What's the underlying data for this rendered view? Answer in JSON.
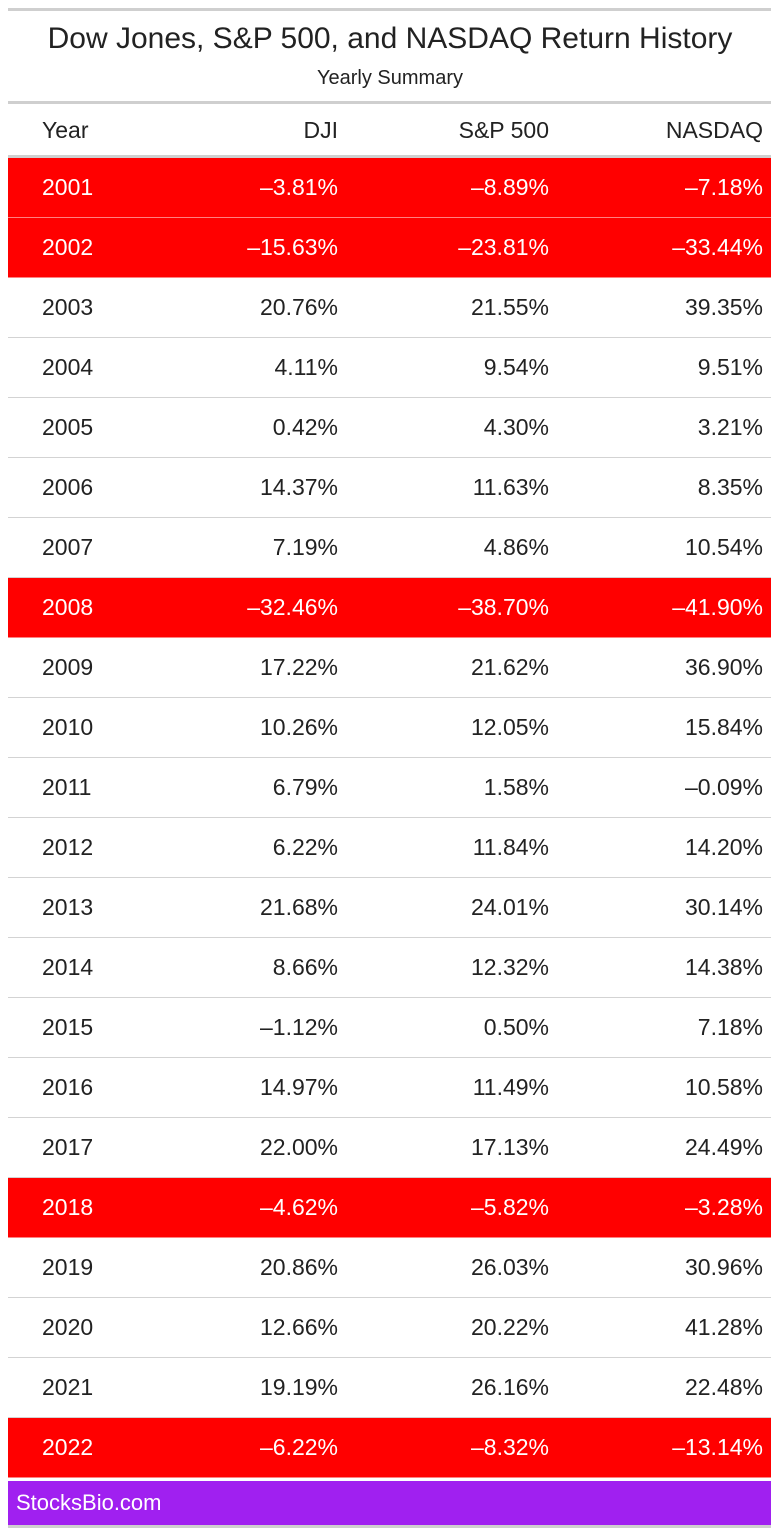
{
  "title": "Dow Jones, S&P 500, and NASDAQ Return History",
  "subtitle": "Yearly Summary",
  "columns": [
    "Year",
    "DJI",
    "S&P 500",
    "NASDAQ"
  ],
  "colors": {
    "negative_row": "#ff0000",
    "footer": "#a020f0",
    "rule": "#cfcfcf"
  },
  "footer": {
    "text": "StocksBio.com"
  },
  "chart_data": {
    "type": "table",
    "title": "Dow Jones, S&P 500, and NASDAQ Return History",
    "subtitle": "Yearly Summary",
    "columns": [
      "Year",
      "DJI",
      "S&P 500",
      "NASDAQ"
    ],
    "rows": [
      {
        "year": "2001",
        "dji": "–3.81%",
        "sp500": "–8.89%",
        "nasdaq": "–7.18%",
        "highlight": true
      },
      {
        "year": "2002",
        "dji": "–15.63%",
        "sp500": "–23.81%",
        "nasdaq": "–33.44%",
        "highlight": true
      },
      {
        "year": "2003",
        "dji": "20.76%",
        "sp500": "21.55%",
        "nasdaq": "39.35%",
        "highlight": false
      },
      {
        "year": "2004",
        "dji": "4.11%",
        "sp500": "9.54%",
        "nasdaq": "9.51%",
        "highlight": false
      },
      {
        "year": "2005",
        "dji": "0.42%",
        "sp500": "4.30%",
        "nasdaq": "3.21%",
        "highlight": false
      },
      {
        "year": "2006",
        "dji": "14.37%",
        "sp500": "11.63%",
        "nasdaq": "8.35%",
        "highlight": false
      },
      {
        "year": "2007",
        "dji": "7.19%",
        "sp500": "4.86%",
        "nasdaq": "10.54%",
        "highlight": false
      },
      {
        "year": "2008",
        "dji": "–32.46%",
        "sp500": "–38.70%",
        "nasdaq": "–41.90%",
        "highlight": true
      },
      {
        "year": "2009",
        "dji": "17.22%",
        "sp500": "21.62%",
        "nasdaq": "36.90%",
        "highlight": false
      },
      {
        "year": "2010",
        "dji": "10.26%",
        "sp500": "12.05%",
        "nasdaq": "15.84%",
        "highlight": false
      },
      {
        "year": "2011",
        "dji": "6.79%",
        "sp500": "1.58%",
        "nasdaq": "–0.09%",
        "highlight": false
      },
      {
        "year": "2012",
        "dji": "6.22%",
        "sp500": "11.84%",
        "nasdaq": "14.20%",
        "highlight": false
      },
      {
        "year": "2013",
        "dji": "21.68%",
        "sp500": "24.01%",
        "nasdaq": "30.14%",
        "highlight": false
      },
      {
        "year": "2014",
        "dji": "8.66%",
        "sp500": "12.32%",
        "nasdaq": "14.38%",
        "highlight": false
      },
      {
        "year": "2015",
        "dji": "–1.12%",
        "sp500": "0.50%",
        "nasdaq": "7.18%",
        "highlight": false
      },
      {
        "year": "2016",
        "dji": "14.97%",
        "sp500": "11.49%",
        "nasdaq": "10.58%",
        "highlight": false
      },
      {
        "year": "2017",
        "dji": "22.00%",
        "sp500": "17.13%",
        "nasdaq": "24.49%",
        "highlight": false
      },
      {
        "year": "2018",
        "dji": "–4.62%",
        "sp500": "–5.82%",
        "nasdaq": "–3.28%",
        "highlight": true
      },
      {
        "year": "2019",
        "dji": "20.86%",
        "sp500": "26.03%",
        "nasdaq": "30.96%",
        "highlight": false
      },
      {
        "year": "2020",
        "dji": "12.66%",
        "sp500": "20.22%",
        "nasdaq": "41.28%",
        "highlight": false
      },
      {
        "year": "2021",
        "dji": "19.19%",
        "sp500": "26.16%",
        "nasdaq": "22.48%",
        "highlight": false
      },
      {
        "year": "2022",
        "dji": "–6.22%",
        "sp500": "–8.32%",
        "nasdaq": "–13.14%",
        "highlight": true
      }
    ]
  }
}
